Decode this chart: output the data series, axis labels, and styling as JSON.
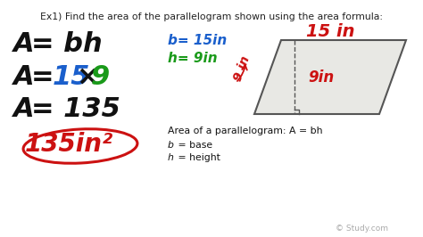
{
  "bg_color": "#ffffff",
  "title": "Ex1) Find the area of the parallelogram shown using the area formula:",
  "title_fontsize": 7.8,
  "title_color": "#222222",
  "black": "#111111",
  "blue": "#1a5fcc",
  "green": "#1a9a1a",
  "red": "#cc1111",
  "para_fill": "#e8e8e4",
  "para_edge": "#555555",
  "formula_text": "Area of a parallelogram: A = bh",
  "study_watermark": "© Study.com"
}
